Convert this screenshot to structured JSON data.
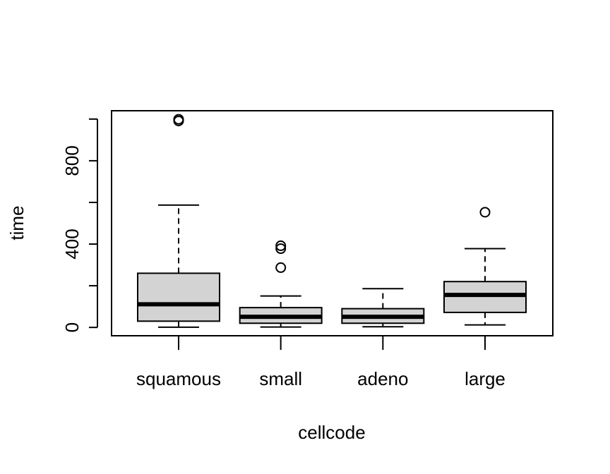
{
  "chart_data": {
    "type": "boxplot",
    "title": "",
    "xlabel": "cellcode",
    "ylabel": "time",
    "ylim": [
      -40,
      1040
    ],
    "yticks": [
      0,
      200,
      400,
      600,
      800,
      1000
    ],
    "ytick_labels": [
      "0",
      "",
      "400",
      "",
      "800",
      ""
    ],
    "grid": false,
    "colors": {
      "box_fill": "#d3d3d3",
      "stroke": "#000000",
      "background": "#ffffff"
    },
    "categories": [
      "squamous",
      "small",
      "adeno",
      "large"
    ],
    "boxes": [
      {
        "category": "squamous",
        "whisker_low": 1,
        "q1": 30,
        "median": 111,
        "q3": 260,
        "whisker_high": 587,
        "outliers": [
          991,
          999
        ]
      },
      {
        "category": "small",
        "whisker_low": 2,
        "q1": 20,
        "median": 51,
        "q3": 95,
        "whisker_high": 151,
        "outliers": [
          287,
          378,
          392
        ]
      },
      {
        "category": "adeno",
        "whisker_low": 3,
        "q1": 20,
        "median": 51,
        "q3": 90,
        "whisker_high": 186,
        "outliers": []
      },
      {
        "category": "large",
        "whisker_low": 12,
        "q1": 72,
        "median": 156,
        "q3": 220,
        "whisker_high": 378,
        "outliers": [
          553
        ]
      }
    ]
  }
}
